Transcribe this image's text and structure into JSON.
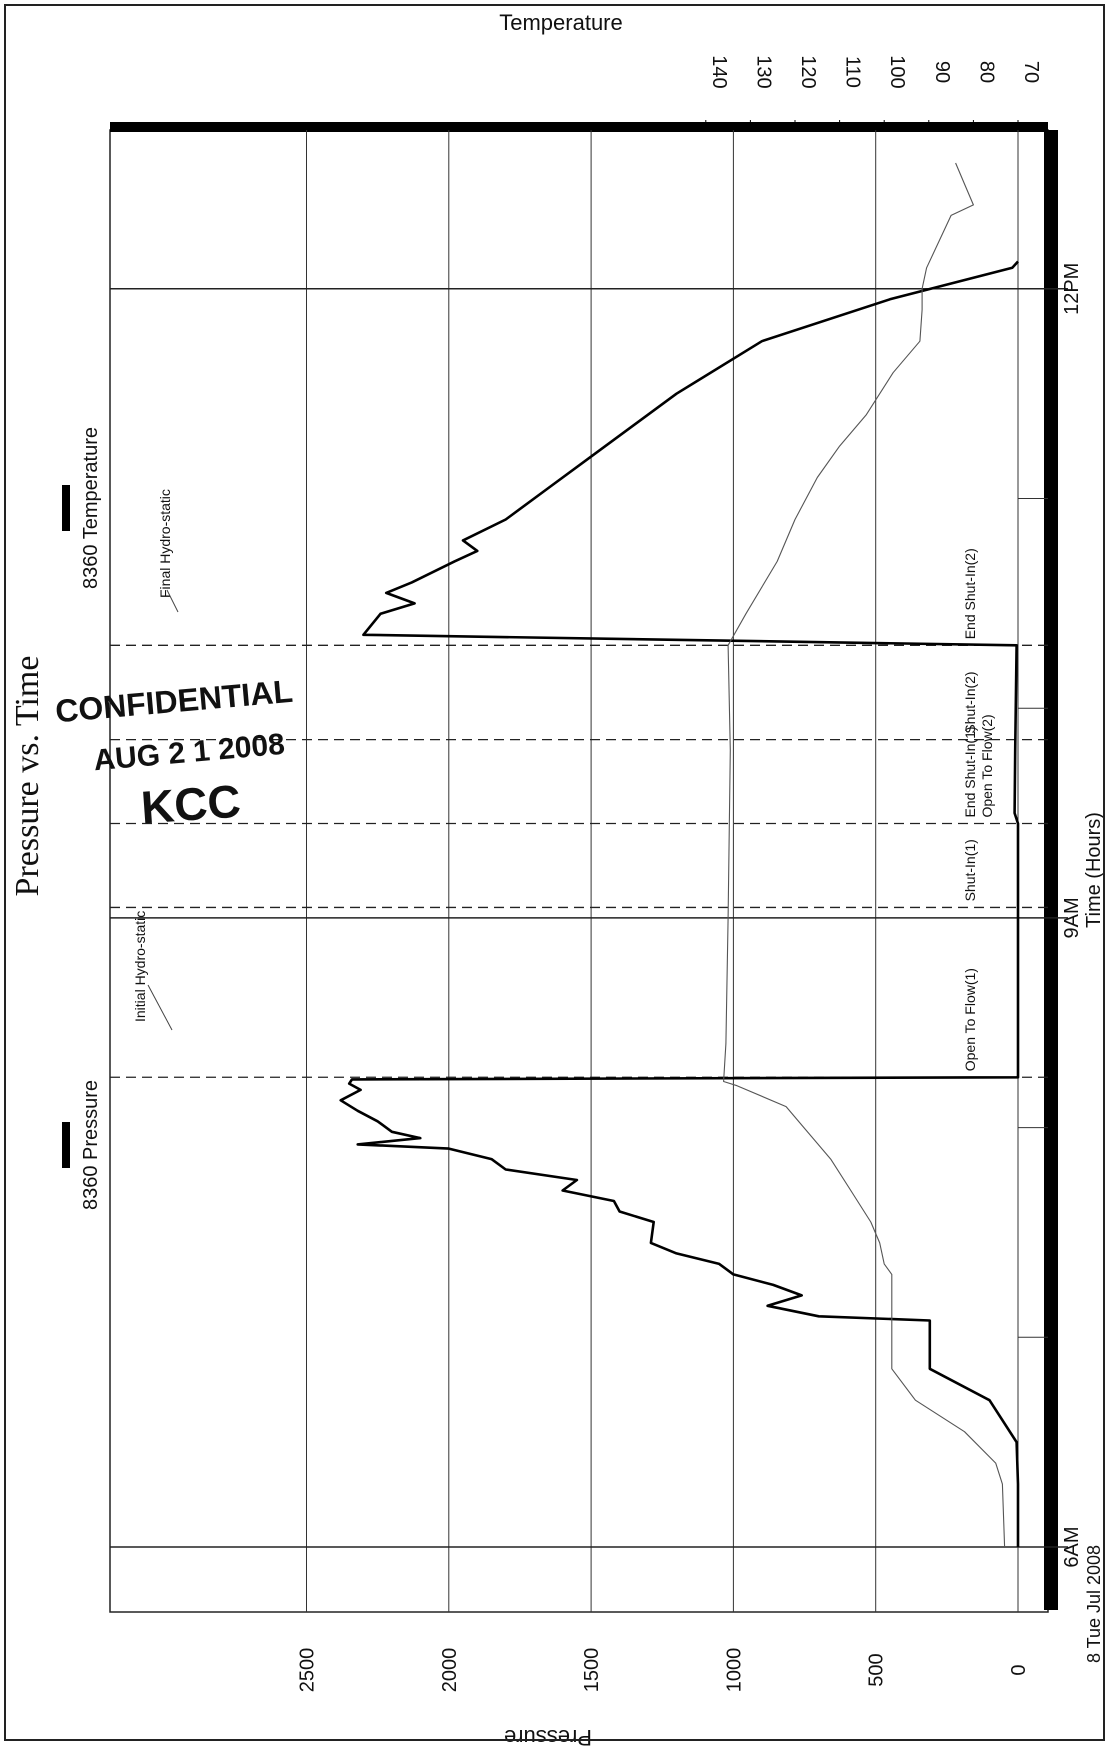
{
  "chart_data": {
    "type": "line",
    "title": "Pressure vs. Time",
    "xlabel": "Time (Hours)",
    "ylabel": "Pressure",
    "y2label": "Temperature",
    "date_label": "8 Tue Jul 2008",
    "orientation": "rotated-90-clockwise",
    "grid": true,
    "xlim_hours": [
      5.5,
      12.6
    ],
    "ylim": [
      -100,
      2550
    ],
    "y2lim": [
      67.6,
      141.2
    ],
    "x_ticks": [
      {
        "hour": 6,
        "label": "6AM"
      },
      {
        "hour": 7,
        "label": ""
      },
      {
        "hour": 8,
        "label": ""
      },
      {
        "hour": 9,
        "label": "9AM"
      },
      {
        "hour": 10,
        "label": ""
      },
      {
        "hour": 11,
        "label": ""
      },
      {
        "hour": 12,
        "label": "12PM"
      }
    ],
    "y_ticks": [
      0,
      500,
      1000,
      1500,
      2000,
      2500
    ],
    "y2_ticks": [
      70,
      80,
      90,
      100,
      110,
      120,
      130,
      140
    ],
    "legend": {
      "placement": "left",
      "entries": [
        {
          "name": "8360 Pressure",
          "axis": "pressure",
          "color": "#000000"
        },
        {
          "name": "8360 Temperature",
          "axis": "temperature",
          "color": "#555555"
        }
      ]
    },
    "series": [
      {
        "name": "8360 Pressure",
        "axis": "pressure",
        "color": "#000000",
        "points": [
          [
            6.0,
            0
          ],
          [
            6.3,
            0
          ],
          [
            6.5,
            5
          ],
          [
            6.7,
            100
          ],
          [
            6.85,
            310
          ],
          [
            7.0,
            310
          ],
          [
            7.08,
            310
          ],
          [
            7.1,
            700
          ],
          [
            7.15,
            880
          ],
          [
            7.2,
            760
          ],
          [
            7.25,
            860
          ],
          [
            7.3,
            1000
          ],
          [
            7.35,
            1050
          ],
          [
            7.4,
            1200
          ],
          [
            7.45,
            1290
          ],
          [
            7.55,
            1280
          ],
          [
            7.6,
            1400
          ],
          [
            7.65,
            1420
          ],
          [
            7.7,
            1600
          ],
          [
            7.75,
            1550
          ],
          [
            7.8,
            1800
          ],
          [
            7.85,
            1850
          ],
          [
            7.9,
            2000
          ],
          [
            7.92,
            2320
          ],
          [
            7.95,
            2100
          ],
          [
            7.98,
            2200
          ],
          [
            8.03,
            2250
          ],
          [
            8.08,
            2320
          ],
          [
            8.13,
            2380
          ],
          [
            8.18,
            2310
          ],
          [
            8.21,
            2350
          ],
          [
            8.23,
            2340
          ],
          [
            8.24,
            0
          ],
          [
            9.45,
            0
          ],
          [
            9.5,
            12
          ],
          [
            9.8,
            10
          ],
          [
            10.3,
            5
          ],
          [
            10.35,
            2300
          ],
          [
            10.45,
            2240
          ],
          [
            10.5,
            2120
          ],
          [
            10.55,
            2220
          ],
          [
            10.6,
            2130
          ],
          [
            10.7,
            1980
          ],
          [
            10.75,
            1900
          ],
          [
            10.8,
            1950
          ],
          [
            10.9,
            1800
          ],
          [
            11.05,
            1650
          ],
          [
            11.2,
            1500
          ],
          [
            11.5,
            1200
          ],
          [
            11.75,
            900
          ],
          [
            11.95,
            450
          ],
          [
            12.1,
            20
          ],
          [
            12.13,
            0
          ]
        ]
      },
      {
        "name": "8360 Temperature",
        "axis": "temperature",
        "color": "#555555",
        "points": [
          [
            6.0,
            73
          ],
          [
            6.3,
            73.5
          ],
          [
            6.4,
            75
          ],
          [
            6.55,
            82
          ],
          [
            6.7,
            93
          ],
          [
            6.85,
            98.3
          ],
          [
            7.0,
            98.3
          ],
          [
            7.3,
            98.3
          ],
          [
            7.35,
            100
          ],
          [
            7.45,
            101
          ],
          [
            7.55,
            103
          ],
          [
            7.7,
            107.5
          ],
          [
            7.85,
            112
          ],
          [
            8.0,
            118
          ],
          [
            8.1,
            122
          ],
          [
            8.2,
            133
          ],
          [
            8.22,
            136
          ],
          [
            8.4,
            135.5
          ],
          [
            9.0,
            135
          ],
          [
            9.8,
            134.5
          ],
          [
            10.3,
            135
          ],
          [
            10.45,
            131
          ],
          [
            10.7,
            124
          ],
          [
            10.9,
            120
          ],
          [
            11.1,
            115
          ],
          [
            11.25,
            110
          ],
          [
            11.4,
            104
          ],
          [
            11.6,
            98
          ],
          [
            11.75,
            92
          ],
          [
            11.9,
            91.5
          ],
          [
            12.0,
            91.5
          ],
          [
            12.1,
            90.5
          ],
          [
            12.35,
            85
          ],
          [
            12.4,
            80
          ],
          [
            12.5,
            82
          ],
          [
            12.6,
            84
          ]
        ]
      }
    ],
    "event_lines": [
      {
        "hour": 8.24,
        "label": "Open To Flow(1)",
        "style": "dashed"
      },
      {
        "hour": 9.05,
        "label": "Shut-In(1)",
        "style": "dashed"
      },
      {
        "hour": 9.45,
        "label": "End Shut-In(1)",
        "style": "dashed"
      },
      {
        "hour": 9.45,
        "label": "Open To Flow(2)",
        "style": "dashed"
      },
      {
        "hour": 9.85,
        "label": "Shut-In(2)",
        "style": "dashed"
      },
      {
        "hour": 10.3,
        "label": "End Shut-In(2)",
        "style": "dashed"
      }
    ],
    "annotations": [
      "Initial Hydro-static",
      "Final Hydro-static"
    ],
    "stamp": {
      "lines": [
        "CONFIDENTIAL",
        "AUG 2 1 2008",
        "KCC"
      ]
    }
  }
}
